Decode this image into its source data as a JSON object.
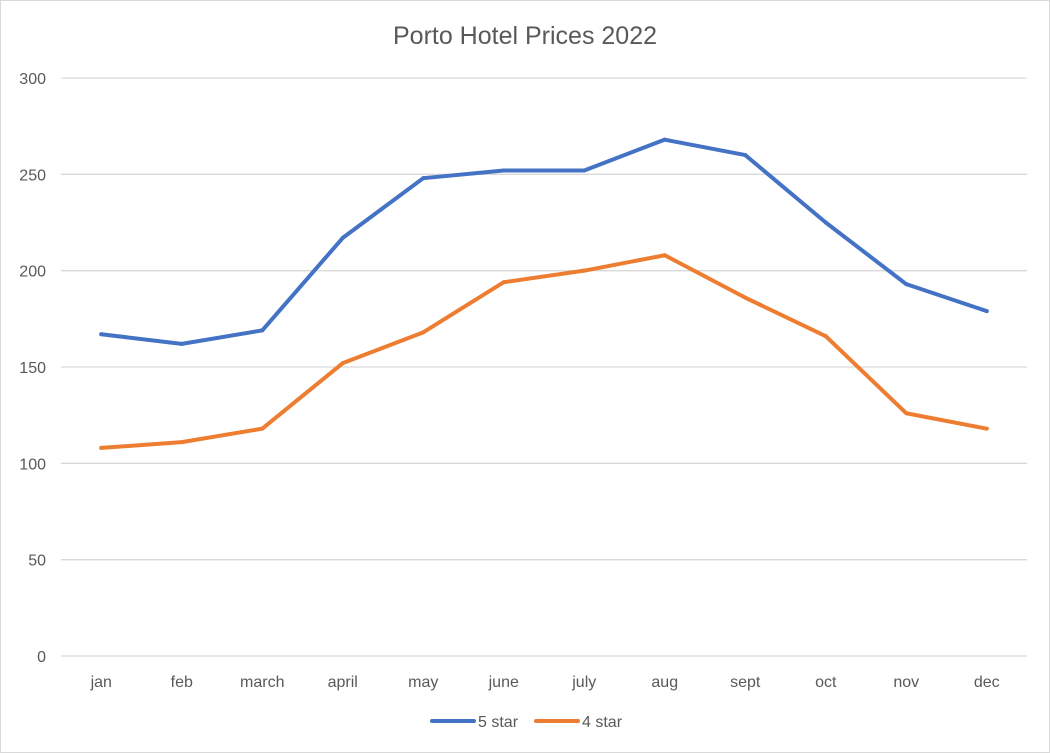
{
  "chart_data": {
    "type": "line",
    "title": "Porto Hotel Prices 2022",
    "xlabel": "",
    "ylabel": "",
    "categories": [
      "jan",
      "feb",
      "march",
      "april",
      "may",
      "june",
      "july",
      "aug",
      "sept",
      "oct",
      "nov",
      "dec"
    ],
    "ylim": [
      0,
      300
    ],
    "yticks": [
      0,
      50,
      100,
      150,
      200,
      250,
      300
    ],
    "grid": true,
    "legend_position": "bottom",
    "series": [
      {
        "name": "5 star",
        "color": "#4472C4",
        "values": [
          167,
          162,
          169,
          217,
          248,
          252,
          252,
          268,
          260,
          225,
          193,
          179
        ]
      },
      {
        "name": "4 star",
        "color": "#ED7D31",
        "values": [
          108,
          111,
          118,
          152,
          168,
          194,
          200,
          208,
          186,
          166,
          126,
          118
        ]
      }
    ]
  }
}
